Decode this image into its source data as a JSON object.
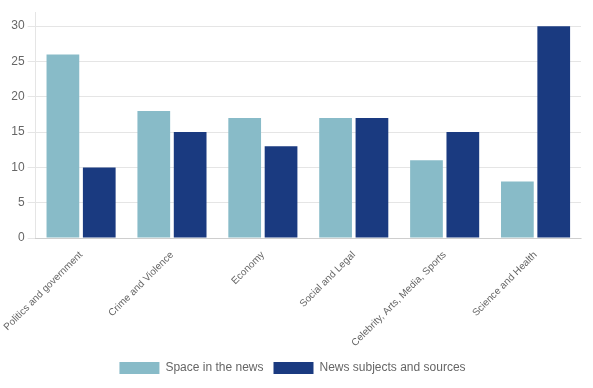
{
  "chart_data": {
    "type": "bar",
    "categories": [
      "Politics and government",
      "Crime and Violence",
      "Economy",
      "Social and Legal",
      "Celebrity, Arts, Media, Sports",
      "Science and Health"
    ],
    "series": [
      {
        "name": "Space in the news",
        "color": "#88bbc8",
        "values": [
          26,
          18,
          17,
          17,
          11,
          8
        ]
      },
      {
        "name": "News subjects and sources",
        "color": "#1a3a80",
        "values": [
          10,
          15,
          13,
          17,
          15,
          30
        ]
      }
    ],
    "ylim": [
      0,
      32
    ],
    "yticks": [
      0,
      5,
      10,
      15,
      20,
      25,
      30
    ],
    "grid": true,
    "legend": "bottom"
  }
}
